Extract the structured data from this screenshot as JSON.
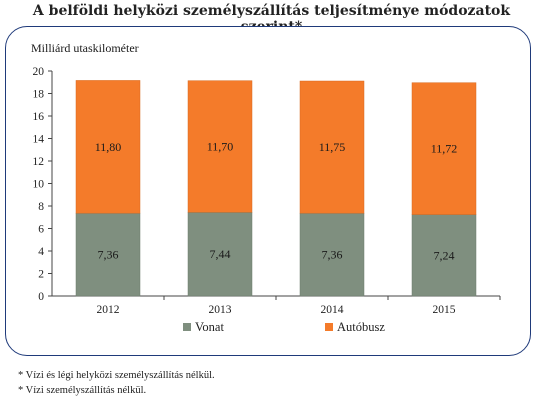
{
  "title": "A belföldi helyközi személyszállítás teljesítménye módozatok szerint*",
  "footnotes": [
    "* Vízi és légi helyközi személyszállítás nélkül.",
    "* Vízi személyszállítás nélkül."
  ],
  "chart_data": {
    "type": "bar",
    "stacked": true,
    "categories": [
      "2012",
      "2013",
      "2014",
      "2015"
    ],
    "series": [
      {
        "name": "Vonat",
        "values": [
          7.36,
          7.44,
          7.36,
          7.24
        ],
        "labels": [
          "7,36",
          "7,44",
          "7,36",
          "7,24"
        ],
        "color": "#7f8f7f"
      },
      {
        "name": "Autóbusz",
        "values": [
          11.8,
          11.7,
          11.75,
          11.72
        ],
        "labels": [
          "11,80",
          "11,70",
          "11,75",
          "11,72"
        ],
        "color": "#f47b2a"
      }
    ],
    "ylabel": "Milliárd utaskilométer",
    "ylim": [
      0,
      20
    ],
    "yticks": [
      0,
      2,
      4,
      6,
      8,
      10,
      12,
      14,
      16,
      18,
      20
    ],
    "grid": false,
    "legend": "bottom"
  }
}
